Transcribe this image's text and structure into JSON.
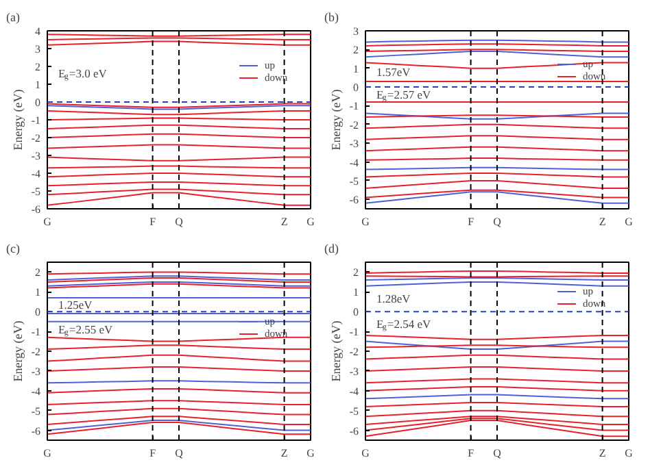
{
  "chart_data": [
    {
      "type": "line",
      "ylabel": "Energy (eV)",
      "annotations": [
        "(a)",
        "E$_{g}$=3.0 eV"
      ],
      "legend": "right",
      "grid": false,
      "categories": [
        "G",
        null,
        null,
        null,
        "F",
        "Q",
        null,
        null,
        null,
        "Z",
        "G"
      ],
      "ylim": [
        -6,
        4
      ],
      "yticks": [
        -6,
        -5,
        -4,
        -3,
        -2,
        -1,
        0,
        1,
        2,
        3,
        4
      ],
      "ref_lines": [
        {
          "axis": "x",
          "value": "F",
          "color": "#000000",
          "line_style": "dashed"
        },
        {
          "axis": "x",
          "value": "Q",
          "color": "#000000",
          "line_style": "dashed"
        },
        {
          "axis": "x",
          "value": "Z",
          "color": "#000000",
          "line_style": "dashed"
        },
        {
          "axis": "y",
          "value": 0,
          "color": "#2a3fc0",
          "line_style": "dashed"
        }
      ],
      "series": [
        {
          "name": "up",
          "color": "#4f5fd6",
          "values": [
            -0.2,
            -0.25,
            -0.3,
            -0.35,
            -0.4,
            -0.4,
            -0.35,
            -0.3,
            -0.25,
            -0.2,
            -0.2
          ]
        },
        {
          "name": "down",
          "color": "#e8202a",
          "values": [
            3.2,
            3.25,
            3.3,
            3.35,
            3.4,
            3.4,
            3.35,
            3.3,
            3.25,
            3.2,
            3.2
          ]
        },
        {
          "color": "#e8202a",
          "values": [
            3.5,
            3.53,
            3.55,
            3.58,
            3.6,
            3.6,
            3.58,
            3.55,
            3.53,
            3.5,
            3.5
          ]
        },
        {
          "color": "#e8202a",
          "values": [
            3.8,
            3.78,
            3.75,
            3.73,
            3.7,
            3.7,
            3.73,
            3.75,
            3.78,
            3.8,
            3.8
          ]
        },
        {
          "color": "#e8202a",
          "values": [
            -0.1,
            -0.15,
            -0.2,
            -0.25,
            -0.3,
            -0.3,
            -0.25,
            -0.2,
            -0.15,
            -0.1,
            -0.1
          ]
        },
        {
          "color": "#e8202a",
          "values": [
            -0.5,
            -0.55,
            -0.6,
            -0.65,
            -0.7,
            -0.7,
            -0.65,
            -0.6,
            -0.55,
            -0.5,
            -0.5
          ]
        },
        {
          "color": "#e8202a",
          "values": [
            -1.0,
            -0.98,
            -0.95,
            -0.93,
            -0.9,
            -0.9,
            -0.93,
            -0.95,
            -0.98,
            -1.0,
            -1.0
          ]
        },
        {
          "color": "#e8202a",
          "values": [
            -1.5,
            -1.45,
            -1.4,
            -1.35,
            -1.3,
            -1.3,
            -1.35,
            -1.4,
            -1.45,
            -1.5,
            -1.5
          ]
        },
        {
          "color": "#e8202a",
          "values": [
            -2.0,
            -1.95,
            -1.9,
            -1.85,
            -1.8,
            -1.8,
            -1.85,
            -1.9,
            -1.95,
            -2.0,
            -2.0
          ]
        },
        {
          "color": "#e8202a",
          "values": [
            -2.6,
            -2.55,
            -2.5,
            -2.45,
            -2.4,
            -2.4,
            -2.45,
            -2.5,
            -2.55,
            -2.6,
            -2.6
          ]
        },
        {
          "color": "#e8202a",
          "values": [
            -3.1,
            -3.15,
            -3.2,
            -3.25,
            -3.3,
            -3.3,
            -3.25,
            -3.2,
            -3.15,
            -3.1,
            -3.1
          ]
        },
        {
          "color": "#e8202a",
          "values": [
            -3.7,
            -3.68,
            -3.65,
            -3.63,
            -3.6,
            -3.6,
            -3.63,
            -3.65,
            -3.68,
            -3.7,
            -3.7
          ]
        },
        {
          "color": "#e8202a",
          "values": [
            -4.2,
            -4.15,
            -4.1,
            -4.05,
            -4.0,
            -4.0,
            -4.05,
            -4.1,
            -4.15,
            -4.2,
            -4.2
          ]
        },
        {
          "color": "#e8202a",
          "values": [
            -4.7,
            -4.65,
            -4.6,
            -4.55,
            -4.5,
            -4.5,
            -4.55,
            -4.6,
            -4.65,
            -4.7,
            -4.7
          ]
        },
        {
          "color": "#e8202a",
          "values": [
            -5.2,
            -5.13,
            -5.05,
            -4.98,
            -4.9,
            -4.9,
            -4.98,
            -5.05,
            -5.13,
            -5.2,
            -5.2
          ]
        },
        {
          "color": "#e8202a",
          "values": [
            -5.8,
            -5.63,
            -5.45,
            -5.28,
            -5.1,
            -5.1,
            -5.28,
            -5.45,
            -5.63,
            -5.8,
            -5.8
          ]
        }
      ]
    },
    {
      "type": "line",
      "ylabel": "Energy (eV)",
      "annotations": [
        "(b)",
        "1.57eV",
        "E$_{g}$=2.57 eV"
      ],
      "legend": "right",
      "grid": false,
      "categories": [
        "G",
        null,
        null,
        null,
        "F",
        "Q",
        null,
        null,
        null,
        "Z",
        "G"
      ],
      "ylim": [
        -6.5,
        3
      ],
      "yticks": [
        -6,
        -5,
        -4,
        -3,
        -2,
        -1,
        0,
        1,
        2,
        3
      ],
      "ref_lines": [
        {
          "axis": "x",
          "value": "F",
          "color": "#000000",
          "line_style": "dashed"
        },
        {
          "axis": "x",
          "value": "Q",
          "color": "#000000",
          "line_style": "dashed"
        },
        {
          "axis": "x",
          "value": "Z",
          "color": "#000000",
          "line_style": "dashed"
        },
        {
          "axis": "y",
          "value": 0,
          "color": "#2a3fc0",
          "line_style": "dashed"
        }
      ],
      "series": [
        {
          "name": "up",
          "color": "#4f5fd6",
          "values": [
            2.4,
            2.43,
            2.45,
            2.48,
            2.5,
            2.5,
            2.48,
            2.45,
            2.43,
            2.4,
            2.4
          ]
        },
        {
          "color": "#4f5fd6",
          "values": [
            1.6,
            1.68,
            1.75,
            1.83,
            1.9,
            1.9,
            1.83,
            1.75,
            1.68,
            1.6,
            1.6
          ]
        },
        {
          "color": "#4f5fd6",
          "values": [
            -1.4,
            -1.48,
            -1.55,
            -1.63,
            -1.7,
            -1.7,
            -1.63,
            -1.55,
            -1.48,
            -1.4,
            -1.4
          ]
        },
        {
          "color": "#4f5fd6",
          "values": [
            -4.4,
            -4.38,
            -4.35,
            -4.33,
            -4.3,
            -4.3,
            -4.33,
            -4.35,
            -4.38,
            -4.4,
            -4.4
          ]
        },
        {
          "color": "#4f5fd6",
          "values": [
            -6.2,
            -6.05,
            -5.9,
            -5.75,
            -5.6,
            -5.6,
            -5.75,
            -5.9,
            -6.05,
            -6.2,
            -6.2
          ]
        },
        {
          "name": "down",
          "color": "#e8202a",
          "values": [
            2.2,
            2.23,
            2.25,
            2.28,
            2.3,
            2.3,
            2.28,
            2.25,
            2.23,
            2.2,
            2.2
          ]
        },
        {
          "color": "#e8202a",
          "values": [
            1.9,
            1.93,
            1.95,
            1.98,
            2.0,
            2.0,
            1.98,
            1.95,
            1.93,
            1.9,
            1.9
          ]
        },
        {
          "color": "#e8202a",
          "values": [
            1.3,
            1.23,
            1.15,
            1.08,
            1.0,
            1.0,
            1.08,
            1.15,
            1.23,
            1.3,
            1.3
          ]
        },
        {
          "color": "#e8202a",
          "values": [
            0.3,
            0.3,
            0.3,
            0.3,
            0.3,
            0.3,
            0.3,
            0.3,
            0.3,
            0.3,
            0.3
          ]
        },
        {
          "color": "#e8202a",
          "values": [
            -0.8,
            -0.8,
            -0.8,
            -0.8,
            -0.8,
            -0.8,
            -0.8,
            -0.8,
            -0.8,
            -0.8,
            -0.8
          ]
        },
        {
          "color": "#e8202a",
          "values": [
            -1.6,
            -1.58,
            -1.55,
            -1.53,
            -1.5,
            -1.5,
            -1.53,
            -1.55,
            -1.58,
            -1.6,
            -1.6
          ]
        },
        {
          "color": "#e8202a",
          "values": [
            -2.2,
            -2.15,
            -2.1,
            -2.05,
            -2.0,
            -2.0,
            -2.05,
            -2.1,
            -2.15,
            -2.2,
            -2.2
          ]
        },
        {
          "color": "#e8202a",
          "values": [
            -2.8,
            -2.75,
            -2.7,
            -2.65,
            -2.6,
            -2.6,
            -2.65,
            -2.7,
            -2.75,
            -2.8,
            -2.8
          ]
        },
        {
          "color": "#e8202a",
          "values": [
            -3.4,
            -3.35,
            -3.3,
            -3.25,
            -3.2,
            -3.2,
            -3.25,
            -3.3,
            -3.35,
            -3.4,
            -3.4
          ]
        },
        {
          "color": "#e8202a",
          "values": [
            -3.9,
            -3.88,
            -3.85,
            -3.83,
            -3.8,
            -3.8,
            -3.83,
            -3.85,
            -3.88,
            -3.9,
            -3.9
          ]
        },
        {
          "color": "#e8202a",
          "values": [
            -4.8,
            -4.75,
            -4.7,
            -4.65,
            -4.6,
            -4.6,
            -4.65,
            -4.7,
            -4.75,
            -4.8,
            -4.8
          ]
        },
        {
          "color": "#e8202a",
          "values": [
            -5.4,
            -5.3,
            -5.2,
            -5.1,
            -5.0,
            -5.0,
            -5.1,
            -5.2,
            -5.3,
            -5.4,
            -5.4
          ]
        },
        {
          "color": "#e8202a",
          "values": [
            -5.9,
            -5.8,
            -5.7,
            -5.6,
            -5.5,
            -5.5,
            -5.6,
            -5.7,
            -5.8,
            -5.9,
            -5.9
          ]
        }
      ]
    },
    {
      "type": "line",
      "ylabel": "Energy (eV)",
      "annotations": [
        "(c)",
        "1.25eV",
        "E$_{g}$=2.55 eV"
      ],
      "legend": "right",
      "grid": false,
      "categories": [
        "G",
        null,
        null,
        null,
        "F",
        "Q",
        null,
        null,
        null,
        "Z",
        "G"
      ],
      "ylim": [
        -6.5,
        2.5
      ],
      "yticks": [
        -6,
        -5,
        -4,
        -3,
        -2,
        -1,
        0,
        1,
        2
      ],
      "ref_lines": [
        {
          "axis": "x",
          "value": "F",
          "color": "#000000",
          "line_style": "dashed"
        },
        {
          "axis": "x",
          "value": "Q",
          "color": "#000000",
          "line_style": "dashed"
        },
        {
          "axis": "x",
          "value": "Z",
          "color": "#000000",
          "line_style": "dashed"
        },
        {
          "axis": "y",
          "value": 0,
          "color": "#2a3fc0",
          "line_style": "dashed"
        }
      ],
      "series": [
        {
          "name": "up",
          "color": "#4f5fd6",
          "values": [
            1.6,
            1.65,
            1.7,
            1.75,
            1.8,
            1.8,
            1.75,
            1.7,
            1.65,
            1.6,
            1.6
          ]
        },
        {
          "color": "#4f5fd6",
          "values": [
            1.3,
            1.35,
            1.4,
            1.45,
            1.5,
            1.5,
            1.45,
            1.4,
            1.35,
            1.3,
            1.3
          ]
        },
        {
          "color": "#4f5fd6",
          "values": [
            0.7,
            0.7,
            0.7,
            0.7,
            0.7,
            0.7,
            0.7,
            0.7,
            0.7,
            0.7,
            0.7
          ]
        },
        {
          "color": "#4f5fd6",
          "values": [
            -0.1,
            -0.1,
            -0.1,
            -0.1,
            -0.1,
            -0.1,
            -0.1,
            -0.1,
            -0.1,
            -0.1,
            -0.1
          ]
        },
        {
          "color": "#4f5fd6",
          "values": [
            -0.5,
            -0.5,
            -0.5,
            -0.5,
            -0.5,
            -0.5,
            -0.5,
            -0.5,
            -0.5,
            -0.5,
            -0.5
          ]
        },
        {
          "color": "#4f5fd6",
          "values": [
            -3.6,
            -3.58,
            -3.55,
            -3.53,
            -3.5,
            -3.5,
            -3.53,
            -3.55,
            -3.58,
            -3.6,
            -3.6
          ]
        },
        {
          "color": "#4f5fd6",
          "values": [
            -6.0,
            -5.88,
            -5.75,
            -5.63,
            -5.5,
            -5.5,
            -5.63,
            -5.75,
            -5.88,
            -6.0,
            -6.0
          ]
        },
        {
          "name": "down",
          "color": "#e8202a",
          "values": [
            1.9,
            1.93,
            1.95,
            1.98,
            2.0,
            2.0,
            1.98,
            1.95,
            1.93,
            1.9,
            1.9
          ]
        },
        {
          "color": "#e8202a",
          "values": [
            1.5,
            1.55,
            1.6,
            1.65,
            1.7,
            1.7,
            1.65,
            1.6,
            1.55,
            1.5,
            1.5
          ]
        },
        {
          "color": "#e8202a",
          "values": [
            1.2,
            1.25,
            1.3,
            1.35,
            1.4,
            1.4,
            1.35,
            1.3,
            1.25,
            1.2,
            1.2
          ]
        },
        {
          "color": "#e8202a",
          "values": [
            -1.3,
            -1.35,
            -1.4,
            -1.45,
            -1.5,
            -1.5,
            -1.45,
            -1.4,
            -1.35,
            -1.3,
            -1.3
          ]
        },
        {
          "color": "#e8202a",
          "values": [
            -1.9,
            -1.85,
            -1.8,
            -1.75,
            -1.7,
            -1.7,
            -1.75,
            -1.8,
            -1.85,
            -1.9,
            -1.9
          ]
        },
        {
          "color": "#e8202a",
          "values": [
            -2.5,
            -2.43,
            -2.35,
            -2.28,
            -2.2,
            -2.2,
            -2.28,
            -2.35,
            -2.43,
            -2.5,
            -2.5
          ]
        },
        {
          "color": "#e8202a",
          "values": [
            -3.0,
            -2.95,
            -2.9,
            -2.85,
            -2.8,
            -2.8,
            -2.85,
            -2.9,
            -2.95,
            -3.0,
            -3.0
          ]
        },
        {
          "color": "#e8202a",
          "values": [
            -4.1,
            -4.05,
            -4.0,
            -3.95,
            -3.9,
            -3.9,
            -3.95,
            -4.0,
            -4.05,
            -4.1,
            -4.1
          ]
        },
        {
          "color": "#e8202a",
          "values": [
            -4.7,
            -4.65,
            -4.6,
            -4.55,
            -4.5,
            -4.5,
            -4.55,
            -4.6,
            -4.65,
            -4.7,
            -4.7
          ]
        },
        {
          "color": "#e8202a",
          "values": [
            -5.2,
            -5.13,
            -5.05,
            -4.98,
            -4.9,
            -4.9,
            -4.98,
            -5.05,
            -5.13,
            -5.2,
            -5.2
          ]
        },
        {
          "color": "#e8202a",
          "values": [
            -5.7,
            -5.6,
            -5.5,
            -5.4,
            -5.3,
            -5.3,
            -5.4,
            -5.5,
            -5.6,
            -5.7,
            -5.7
          ]
        },
        {
          "color": "#e8202a",
          "values": [
            -6.2,
            -6.05,
            -5.9,
            -5.75,
            -5.6,
            -5.6,
            -5.75,
            -5.9,
            -6.05,
            -6.2,
            -6.2
          ]
        }
      ]
    },
    {
      "type": "line",
      "ylabel": "Energy (eV)",
      "annotations": [
        "(d)",
        "1.28eV",
        "E$_{g}$=2.54 eV"
      ],
      "legend": "right",
      "grid": false,
      "categories": [
        "G",
        null,
        null,
        null,
        "F",
        "Q",
        null,
        null,
        null,
        "Z",
        "G"
      ],
      "ylim": [
        -6.5,
        2.5
      ],
      "yticks": [
        -6,
        -5,
        -4,
        -3,
        -2,
        -1,
        0,
        1,
        2
      ],
      "ref_lines": [
        {
          "axis": "x",
          "value": "F",
          "color": "#000000",
          "line_style": "dashed"
        },
        {
          "axis": "x",
          "value": "Q",
          "color": "#000000",
          "line_style": "dashed"
        },
        {
          "axis": "x",
          "value": "Z",
          "color": "#000000",
          "line_style": "dashed"
        },
        {
          "axis": "y",
          "value": 0,
          "color": "#2a3fc0",
          "line_style": "dashed"
        }
      ],
      "series": [
        {
          "name": "up",
          "color": "#4f5fd6",
          "values": [
            1.6,
            1.63,
            1.65,
            1.68,
            1.7,
            1.7,
            1.68,
            1.65,
            1.63,
            1.6,
            1.6
          ]
        },
        {
          "color": "#4f5fd6",
          "values": [
            1.3,
            1.35,
            1.4,
            1.45,
            1.5,
            1.5,
            1.45,
            1.4,
            1.35,
            1.3,
            1.3
          ]
        },
        {
          "color": "#4f5fd6",
          "values": [
            -1.5,
            -1.6,
            -1.7,
            -1.8,
            -1.9,
            -1.9,
            -1.8,
            -1.7,
            -1.6,
            -1.5,
            -1.5
          ]
        },
        {
          "color": "#4f5fd6",
          "values": [
            -4.4,
            -4.35,
            -4.3,
            -4.25,
            -4.2,
            -4.2,
            -4.25,
            -4.3,
            -4.35,
            -4.4,
            -4.4
          ]
        },
        {
          "name": "down",
          "color": "#e8202a",
          "values": [
            1.95,
            1.98,
            2.0,
            2.03,
            2.05,
            2.05,
            2.03,
            2.0,
            1.98,
            1.95,
            1.95
          ]
        },
        {
          "color": "#e8202a",
          "values": [
            1.8,
            1.79,
            1.78,
            1.77,
            1.76,
            1.76,
            1.77,
            1.78,
            1.79,
            1.8,
            1.8
          ]
        },
        {
          "color": "#e8202a",
          "values": [
            -1.2,
            -1.25,
            -1.3,
            -1.35,
            -1.4,
            -1.4,
            -1.35,
            -1.3,
            -1.25,
            -1.2,
            -1.2
          ]
        },
        {
          "color": "#e8202a",
          "values": [
            -1.8,
            -1.78,
            -1.75,
            -1.73,
            -1.7,
            -1.7,
            -1.73,
            -1.75,
            -1.78,
            -1.8,
            -1.8
          ]
        },
        {
          "color": "#e8202a",
          "values": [
            -2.4,
            -2.35,
            -2.3,
            -2.25,
            -2.2,
            -2.2,
            -2.25,
            -2.3,
            -2.35,
            -2.4,
            -2.4
          ]
        },
        {
          "color": "#e8202a",
          "values": [
            -3.0,
            -2.95,
            -2.9,
            -2.85,
            -2.8,
            -2.8,
            -2.85,
            -2.9,
            -2.95,
            -3.0,
            -3.0
          ]
        },
        {
          "color": "#e8202a",
          "values": [
            -3.6,
            -3.55,
            -3.5,
            -3.45,
            -3.4,
            -3.4,
            -3.45,
            -3.5,
            -3.55,
            -3.6,
            -3.6
          ]
        },
        {
          "color": "#e8202a",
          "values": [
            -4.0,
            -3.95,
            -3.9,
            -3.85,
            -3.8,
            -3.8,
            -3.85,
            -3.9,
            -3.95,
            -4.0,
            -4.0
          ]
        },
        {
          "color": "#e8202a",
          "values": [
            -4.8,
            -4.75,
            -4.7,
            -4.65,
            -4.6,
            -4.6,
            -4.65,
            -4.7,
            -4.75,
            -4.8,
            -4.8
          ]
        },
        {
          "color": "#e8202a",
          "values": [
            -5.3,
            -5.23,
            -5.15,
            -5.08,
            -5.0,
            -5.0,
            -5.08,
            -5.15,
            -5.23,
            -5.3,
            -5.3
          ]
        },
        {
          "color": "#e8202a",
          "values": [
            -5.7,
            -5.6,
            -5.5,
            -5.4,
            -5.3,
            -5.3,
            -5.4,
            -5.5,
            -5.6,
            -5.7,
            -5.7
          ]
        },
        {
          "color": "#e8202a",
          "values": [
            -6.0,
            -5.85,
            -5.7,
            -5.55,
            -5.4,
            -5.4,
            -5.55,
            -5.7,
            -5.85,
            -6.0,
            -6.0
          ]
        },
        {
          "color": "#e8202a",
          "values": [
            -6.3,
            -6.1,
            -5.9,
            -5.7,
            -5.5,
            -5.5,
            -5.7,
            -5.9,
            -6.1,
            -6.3,
            -6.3
          ]
        }
      ]
    }
  ]
}
